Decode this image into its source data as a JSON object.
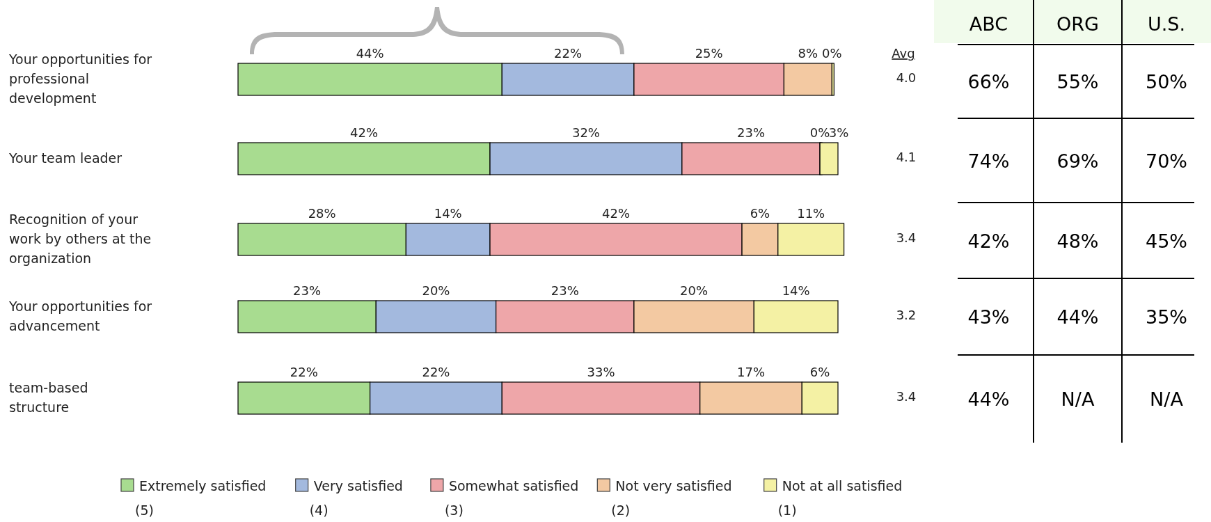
{
  "chart_data": [
    {
      "type": "bar",
      "orientation": "horizontal",
      "stacked": true,
      "legend": "bottom",
      "categories": [
        "Your opportunities for\nprofessional\ndevelopment",
        "Your team leader",
        "Recognition of your\nwork by others at the\norganization",
        "Your opportunities for\nadvancement",
        "team-based\nstructure"
      ],
      "series": [
        {
          "name": "Extremely satisfied\n(5)",
          "color": "#a8dc90",
          "values": [
            44,
            42,
            28,
            23,
            22
          ],
          "value_labels": [
            "44%",
            "42%",
            "28%",
            "23%",
            "22%"
          ]
        },
        {
          "name": "Very satisfied\n(4)",
          "color": "#a3b9de",
          "values": [
            22,
            32,
            14,
            20,
            22
          ],
          "value_labels": [
            "22%",
            "32%",
            "14%",
            "20%",
            "22%"
          ]
        },
        {
          "name": "Somewhat satisfied\n(3)",
          "color": "#eea6a9",
          "values": [
            25,
            23,
            42,
            23,
            33
          ],
          "value_labels": [
            "25%",
            "23%",
            "42%",
            "23%",
            "33%"
          ]
        },
        {
          "name": "Not very satisfied\n(2)",
          "color": "#f3c9a2",
          "values": [
            8,
            0,
            6,
            20,
            17
          ],
          "value_labels": [
            "8%",
            "0%",
            "6%",
            "20%",
            "17%"
          ]
        },
        {
          "name": "Not at all satisfied\n(1)",
          "color": "#f4f1a4",
          "values": [
            0,
            3,
            11,
            14,
            6
          ],
          "value_labels": [
            "0%",
            "3%",
            "11%",
            "14%",
            "6%"
          ]
        }
      ],
      "annotations": [
        "Avg",
        "4.0",
        "4.1",
        "3.4",
        "3.2",
        "3.4"
      ]
    },
    {
      "type": "other",
      "categories": [
        "ABC",
        "ORG",
        "U.S."
      ],
      "cell_labels": [
        [
          "66%",
          "55%",
          "50%"
        ],
        [
          "74%",
          "69%",
          "70%"
        ],
        [
          "42%",
          "48%",
          "45%"
        ],
        [
          "43%",
          "44%",
          "35%"
        ],
        [
          "44%",
          "N/A",
          "N/A"
        ]
      ]
    }
  ]
}
